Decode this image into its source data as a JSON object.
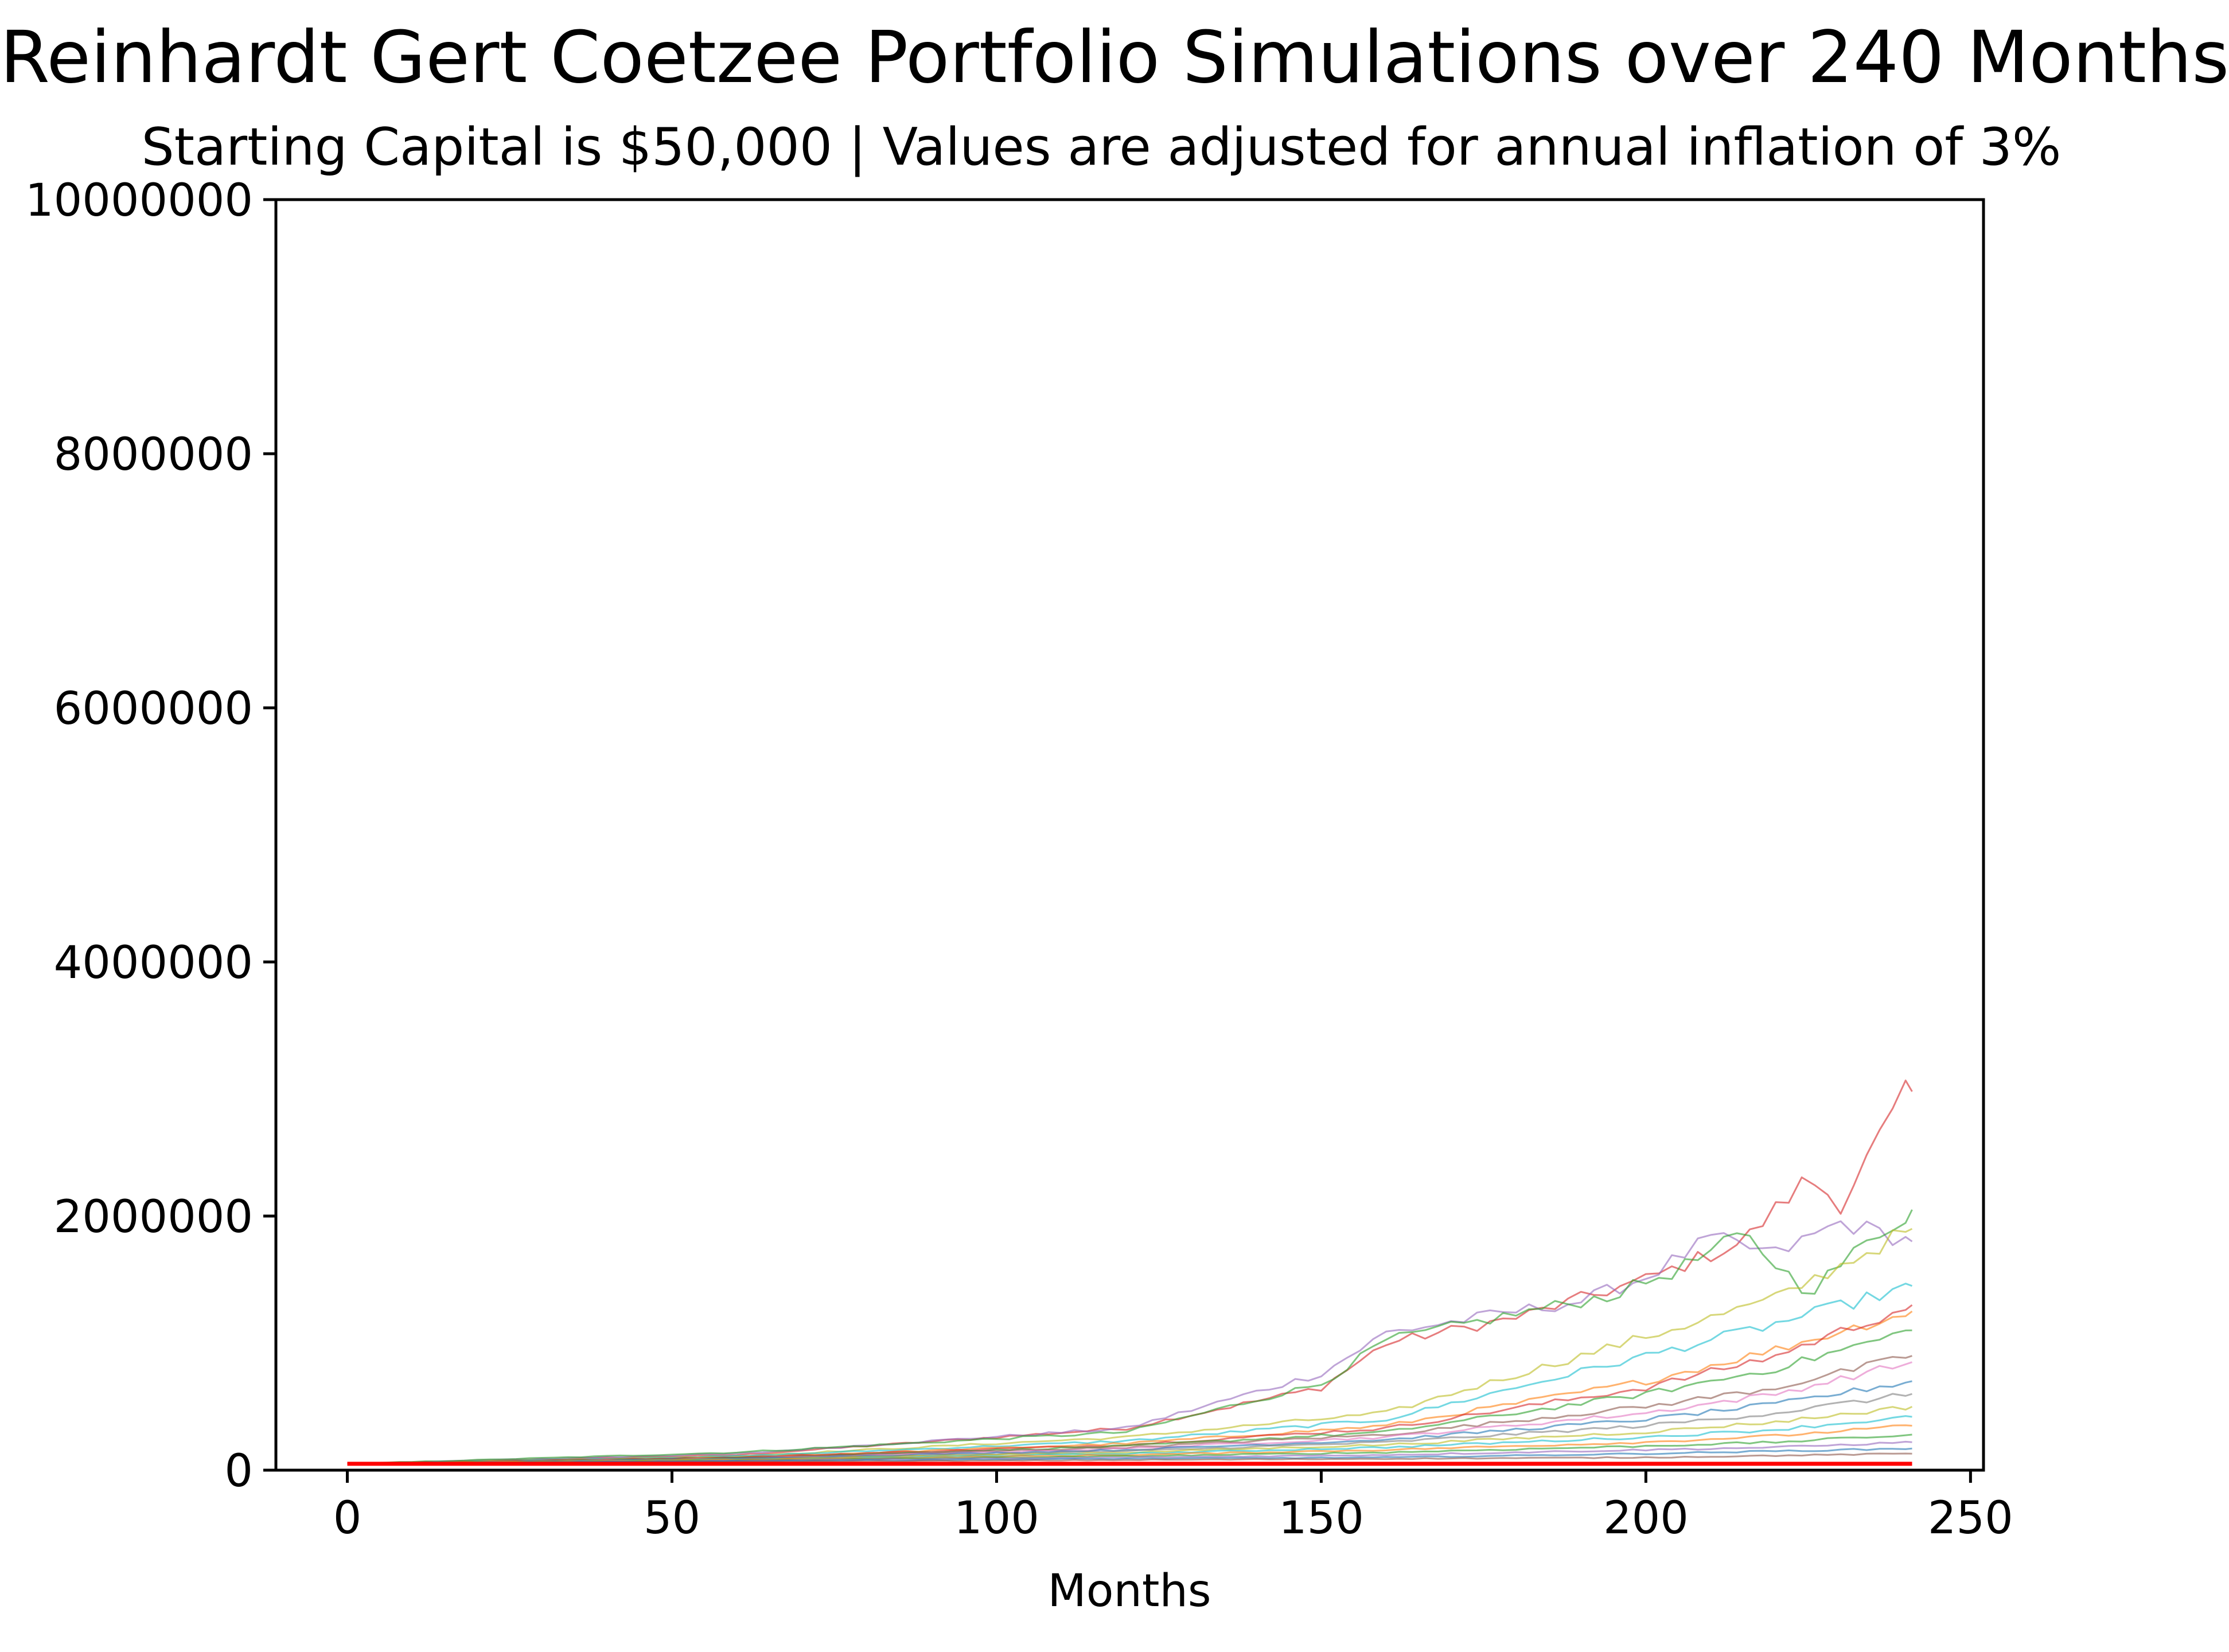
{
  "chart_data": {
    "type": "line",
    "title": "Reinhardt Gert Coetzee Portfolio Simulations over 240 Months",
    "subtitle": "Starting Capital is $50,000 | Values are adjusted for annual inflation of 3%",
    "xlabel": "Months",
    "ylabel": "",
    "xlim": [
      -11,
      252
    ],
    "ylim": [
      0,
      10000000
    ],
    "x_ticks": [
      0,
      50,
      100,
      150,
      200,
      250
    ],
    "y_ticks": [
      0,
      2000000,
      4000000,
      6000000,
      8000000,
      10000000
    ],
    "x_tick_labels": [
      "0",
      "50",
      "100",
      "150",
      "200",
      "250"
    ],
    "y_tick_labels": [
      "0",
      "2000000",
      "4000000",
      "6000000",
      "8000000",
      "10000000"
    ],
    "grid": false,
    "legend": "none",
    "months": 240,
    "starting_capital": 50000,
    "simulation_count_estimate": 100,
    "colors": [
      "#1f77b4",
      "#ff7f0e",
      "#2ca02c",
      "#d62728",
      "#9467bd",
      "#8c564b",
      "#e377c2",
      "#7f7f7f",
      "#bcbd22",
      "#17becf"
    ],
    "highlighted_series_color": "#ff0000",
    "series": [
      {
        "x": [
          0,
          60,
          120,
          150,
          160,
          180,
          200,
          215,
          225,
          230,
          240,
          241
        ],
        "values": [
          50000,
          120000,
          330000,
          650000,
          1000000,
          1200000,
          1500000,
          1800000,
          2300000,
          2100000,
          2950000,
          2980000
        ],
        "color": "#d62728"
      },
      {
        "x": [
          0,
          60,
          120,
          150,
          160,
          180,
          190,
          200,
          210,
          220,
          230,
          241
        ],
        "values": [
          50000,
          130000,
          330000,
          760000,
          1080000,
          1250000,
          1330000,
          1520000,
          1820000,
          1700000,
          1950000,
          1800000
        ],
        "color": "#9467bd"
      },
      {
        "x": [
          0,
          60,
          120,
          150,
          160,
          180,
          195,
          205,
          215,
          225,
          235,
          241
        ],
        "values": [
          50000,
          140000,
          300000,
          680000,
          1020000,
          1230000,
          1380000,
          1580000,
          1850000,
          1400000,
          1830000,
          2050000
        ],
        "color": "#2ca02c"
      },
      {
        "x": [
          0,
          60,
          120,
          160,
          200,
          220,
          241
        ],
        "values": [
          50000,
          110000,
          260000,
          450000,
          1050000,
          1350000,
          1900000
        ],
        "color": "#bcbd22"
      },
      {
        "x": [
          0,
          60,
          120,
          160,
          200,
          220,
          241
        ],
        "values": [
          50000,
          110000,
          230000,
          400000,
          900000,
          1150000,
          1450000
        ],
        "color": "#17becf"
      },
      {
        "x": [
          0,
          60,
          120,
          160,
          200,
          220,
          241
        ],
        "values": [
          50000,
          100000,
          210000,
          350000,
          700000,
          950000,
          1250000
        ],
        "color": "#ff7f0e"
      },
      {
        "x": [
          0,
          60,
          120,
          160,
          200,
          220,
          241
        ],
        "values": [
          50000,
          100000,
          200000,
          330000,
          650000,
          900000,
          1300000
        ],
        "color": "#d62728"
      },
      {
        "x": [
          0,
          60,
          120,
          160,
          200,
          220,
          241
        ],
        "values": [
          50000,
          95000,
          190000,
          300000,
          600000,
          800000,
          1100000
        ],
        "color": "#2ca02c"
      },
      {
        "x": [
          0,
          60,
          120,
          160,
          200,
          220,
          241
        ],
        "values": [
          50000,
          95000,
          180000,
          280000,
          500000,
          650000,
          900000
        ],
        "color": "#8c564b"
      },
      {
        "x": [
          0,
          60,
          120,
          160,
          200,
          220,
          241
        ],
        "values": [
          50000,
          90000,
          170000,
          260000,
          450000,
          600000,
          850000
        ],
        "color": "#e377c2"
      },
      {
        "x": [
          0,
          60,
          120,
          160,
          200,
          220,
          241
        ],
        "values": [
          50000,
          90000,
          160000,
          240000,
          400000,
          520000,
          700000
        ],
        "color": "#1f77b4"
      },
      {
        "x": [
          0,
          60,
          120,
          160,
          200,
          220,
          241
        ],
        "values": [
          50000,
          85000,
          150000,
          220000,
          350000,
          450000,
          600000
        ],
        "color": "#7f7f7f"
      },
      {
        "x": [
          0,
          60,
          120,
          160,
          200,
          220,
          241
        ],
        "values": [
          50000,
          85000,
          140000,
          200000,
          300000,
          380000,
          500000
        ],
        "color": "#bcbd22"
      },
      {
        "x": [
          0,
          60,
          120,
          160,
          200,
          220,
          241
        ],
        "values": [
          50000,
          80000,
          130000,
          180000,
          260000,
          320000,
          420000
        ],
        "color": "#17becf"
      },
      {
        "x": [
          0,
          60,
          120,
          160,
          200,
          220,
          241
        ],
        "values": [
          50000,
          80000,
          120000,
          160000,
          220000,
          270000,
          350000
        ],
        "color": "#ff7f0e"
      },
      {
        "x": [
          0,
          60,
          120,
          160,
          200,
          220,
          241
        ],
        "values": [
          50000,
          75000,
          110000,
          140000,
          190000,
          220000,
          280000
        ],
        "color": "#2ca02c"
      },
      {
        "x": [
          0,
          60,
          120,
          160,
          200,
          220,
          241
        ],
        "values": [
          50000,
          75000,
          100000,
          120000,
          160000,
          180000,
          220000
        ],
        "color": "#9467bd"
      },
      {
        "x": [
          0,
          60,
          120,
          160,
          200,
          220,
          241
        ],
        "values": [
          50000,
          70000,
          90000,
          100000,
          130000,
          150000,
          170000
        ],
        "color": "#1f77b4"
      },
      {
        "x": [
          0,
          60,
          120,
          160,
          200,
          220,
          241
        ],
        "values": [
          50000,
          65000,
          80000,
          90000,
          100000,
          115000,
          130000
        ],
        "color": "#8c564b"
      },
      {
        "x": [
          0,
          241
        ],
        "values": [
          50000,
          50000
        ],
        "color": "#ff0000"
      }
    ]
  }
}
